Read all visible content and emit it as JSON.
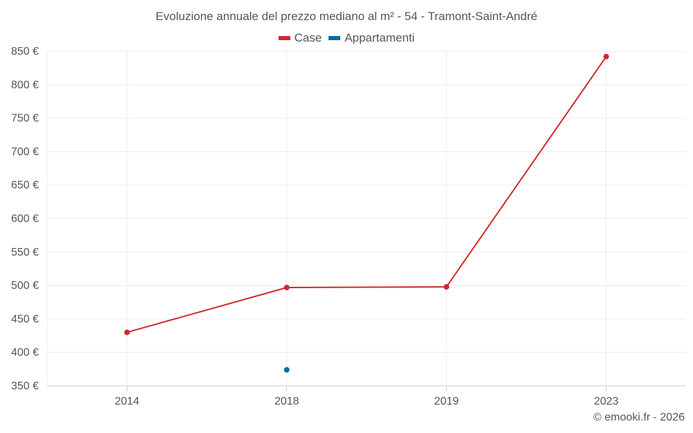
{
  "chart_data": {
    "type": "line",
    "title": "Evoluzione annuale del prezzo mediano al m² - 54 - Tramont-Saint-André",
    "categories": [
      "2014",
      "2018",
      "2019",
      "2023"
    ],
    "series": [
      {
        "name": "Case",
        "color": "#d0282b",
        "values": [
          430,
          497,
          498,
          842
        ]
      },
      {
        "name": "Appartamenti",
        "color": "#0d6aa3",
        "values": [
          null,
          374,
          null,
          null
        ]
      }
    ],
    "y_ticks": [
      "350 €",
      "400 €",
      "450 €",
      "500 €",
      "550 €",
      "600 €",
      "650 €",
      "700 €",
      "750 €",
      "800 €",
      "850 €"
    ],
    "ylim": [
      350,
      850
    ],
    "grid": true,
    "legend_position": "top-center"
  },
  "credit": "© emooki.fr - 2026"
}
